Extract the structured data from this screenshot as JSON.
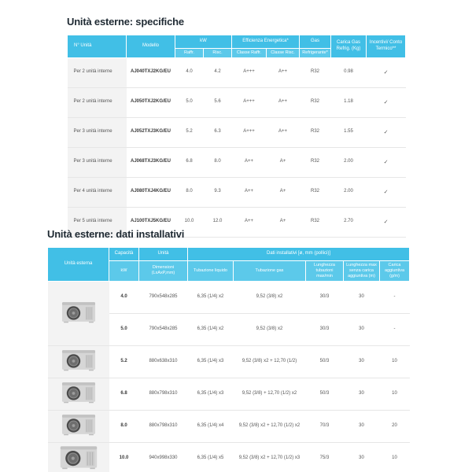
{
  "colors": {
    "header_blue": "#41bfe6",
    "header_blue_light": "#5cc9ea",
    "first_col_gray": "#f3f3f3",
    "title_text": "#1f2a33",
    "body_text": "#555555"
  },
  "icons": {
    "unit_photo": "outdoor-unit-photo",
    "check_mark": "✓"
  },
  "section1": {
    "title": "Unità esterne: specifiche",
    "header": {
      "col_unita": "N° Unità",
      "col_modello": "Modello",
      "group_kw": "kW",
      "sub_raffr": "Raffr.",
      "sub_risc": "Risc.",
      "group_eff": "Efficienza Energetica*",
      "sub_classe_raffr": "Classe Raffr.",
      "sub_classe_risc": "Classe Risc.",
      "group_gas": "Gas",
      "sub_refrigerante": "Refrigerante*",
      "col_carica": "Carica Gas Refrig. (Kg)",
      "col_incentivi": "Incentivi/ Conto Termico**"
    },
    "rows": [
      {
        "unita": "Per 2 unità interne",
        "modello": "AJ040TXJ2KG/EU",
        "raffr": "4.0",
        "risc": "4.2",
        "classe_raffr": "A+++",
        "classe_risc": "A++",
        "gas": "R32",
        "carica": "0.98",
        "incentivi": "✓"
      },
      {
        "unita": "Per 2 unità interne",
        "modello": "AJ050TXJ2KG/EU",
        "raffr": "5.0",
        "risc": "5.6",
        "classe_raffr": "A+++",
        "classe_risc": "A++",
        "gas": "R32",
        "carica": "1.18",
        "incentivi": "✓"
      },
      {
        "unita": "Per 3 unità interne",
        "modello": "AJ052TXJ3KG/EU",
        "raffr": "5.2",
        "risc": "6.3",
        "classe_raffr": "A+++",
        "classe_risc": "A++",
        "gas": "R32",
        "carica": "1.55",
        "incentivi": "✓"
      },
      {
        "unita": "Per 3 unità interne",
        "modello": "AJ068TXJ3KG/EU",
        "raffr": "6.8",
        "risc": "8.0",
        "classe_raffr": "A++",
        "classe_risc": "A+",
        "gas": "R32",
        "carica": "2.00",
        "incentivi": "✓"
      },
      {
        "unita": "Per 4 unità interne",
        "modello": "AJ080TXJ4KG/EU",
        "raffr": "8.0",
        "risc": "9.3",
        "classe_raffr": "A++",
        "classe_risc": "A+",
        "gas": "R32",
        "carica": "2.00",
        "incentivi": "✓"
      },
      {
        "unita": "Per 5 unità interne",
        "modello": "AJ100TXJ5KG/EU",
        "raffr": "10.0",
        "risc": "12.0",
        "classe_raffr": "A++",
        "classe_risc": "A+",
        "gas": "R32",
        "carica": "2.70",
        "incentivi": "✓"
      }
    ]
  },
  "section2": {
    "title": "Unità esterne: dati installativi",
    "header": {
      "col_unita_esterna": "Unità esterna",
      "group_capacita": "Capacità",
      "sub_kw": "kW",
      "group_unita": "Unità",
      "sub_dimensioni": "Dimensioni (LxAxP,mm)",
      "group_dati": "Dati installativi [ø, mm (pollici)]",
      "sub_tubazione_liquido": "Tubazione liquido",
      "sub_tubazione_gas": "Tubazione gas",
      "sub_lunghezza": "Lunghezza tubazioni max/min",
      "sub_lunghezza_max": "Lunghezza max senza carica aggiuntiva (m)",
      "sub_carica_aggiuntiva": "Carica aggiuntiva (g/m)"
    },
    "rows": [
      {
        "kw": "4.0",
        "dimensioni": "790x548x285",
        "liquido": "6,35 (1/4) x2",
        "gas": "9,52 (3/8) x2",
        "lunghezza": "30/3",
        "lunghezza_max": "30",
        "carica": "-"
      },
      {
        "kw": "5.0",
        "dimensioni": "790x548x285",
        "liquido": "6,35 (1/4) x2",
        "gas": "9,52 (3/8) x2",
        "lunghezza": "30/3",
        "lunghezza_max": "30",
        "carica": "-"
      },
      {
        "kw": "5.2",
        "dimensioni": "880x638x310",
        "liquido": "6,35 (1/4) x3",
        "gas": "9,52 (3/8) x2 + 12,70 (1/2)",
        "lunghezza": "50/3",
        "lunghezza_max": "30",
        "carica": "10"
      },
      {
        "kw": "6.8",
        "dimensioni": "880x798x310",
        "liquido": "6,35 (1/4) x3",
        "gas": "9,52 (3/8) + 12,70 (1/2) x2",
        "lunghezza": "50/3",
        "lunghezza_max": "30",
        "carica": "10"
      },
      {
        "kw": "8.0",
        "dimensioni": "880x798x310",
        "liquido": "6,35 (1/4) x4",
        "gas": "9,52 (3/8) x2 + 12,70 (1/2) x2",
        "lunghezza": "70/3",
        "lunghezza_max": "30",
        "carica": "20"
      },
      {
        "kw": "10.0",
        "dimensioni": "940x998x330",
        "liquido": "6,35 (1/4) x5",
        "gas": "9,52 (3/8) x2 + 12,70 (1/2) x3",
        "lunghezza": "75/3",
        "lunghezza_max": "30",
        "carica": "10"
      }
    ]
  }
}
